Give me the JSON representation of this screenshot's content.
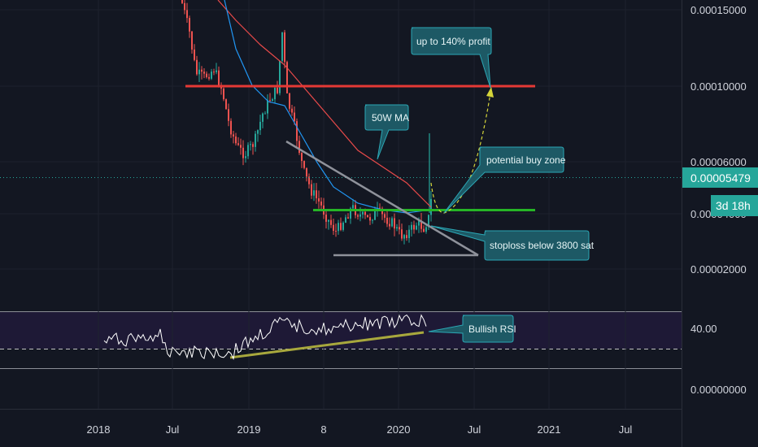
{
  "chart_data": [
    {
      "type": "candlestick",
      "panel": "price",
      "x_axis_labels": [
        "2018",
        "Jul",
        "2019",
        "8",
        "2020",
        "Jul",
        "2021",
        "Jul"
      ],
      "y_axis_labels": [
        "0.00015000",
        "0.00010000",
        "0.00006000",
        "0.00004000",
        "0.00002000"
      ],
      "y_range": [
        1.2e-05,
        0.000158
      ],
      "y_scale": "log",
      "current_price": "0.00005479",
      "countdown": "3d 18h",
      "series": [
        {
          "name": "50W MA",
          "type": "line"
        }
      ],
      "price_levels": [
        {
          "value": 0.0001,
          "style": "solid"
        },
        {
          "value": 3.85e-05,
          "style": "solid"
        },
        {
          "value": 5.479e-05,
          "style": "dotted"
        }
      ],
      "annotations": [
        "up to 140% profit",
        "50W MA",
        "potential buy zone",
        "stoploss below 3800 sat"
      ]
    },
    {
      "type": "line",
      "panel": "RSI",
      "y_axis_labels": [
        "40.00",
        "0.00000000"
      ],
      "annotations": [
        "Bullish RSI"
      ]
    }
  ],
  "colors": {
    "background": "#131722",
    "candle_up": "#26a69a",
    "candle_down": "#ef5350",
    "ma_50w": "#e84a4a",
    "ma_blue": "#2196f3",
    "resistance": "#e53935",
    "support": "#26b526",
    "triangle": "#9598a1",
    "projection": "#d4d43a",
    "rsi_line": "#ffffff",
    "rsi_trend": "#a3a33a",
    "callout_bg": "#1e5c66",
    "price_tag": "#26a69a"
  }
}
